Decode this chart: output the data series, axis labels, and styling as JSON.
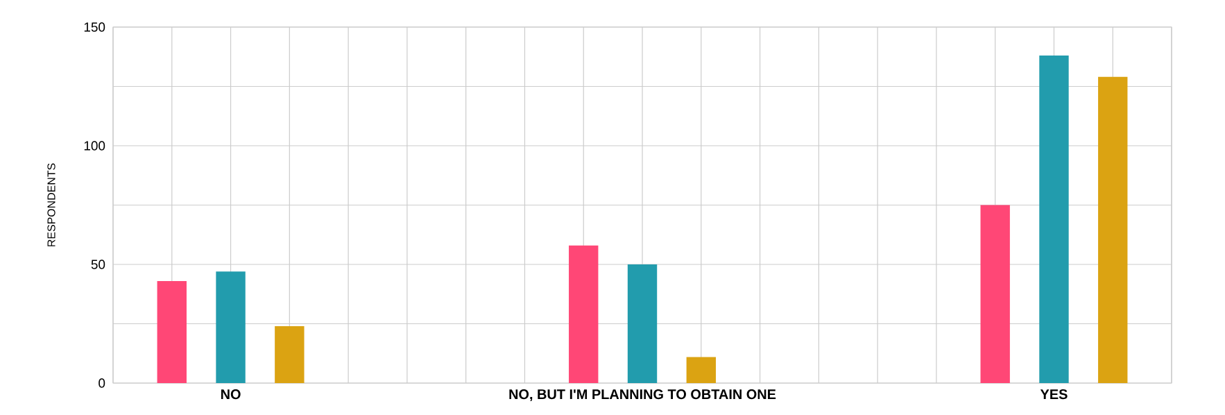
{
  "chart_data": {
    "type": "bar",
    "ylabel": "RESPONDENTS",
    "categories": [
      "NO",
      "NO, BUT I'M PLANNING TO OBTAIN ONE",
      "YES"
    ],
    "series": [
      {
        "color": "#ff4776",
        "values": [
          43,
          58,
          75
        ]
      },
      {
        "color": "#229cad",
        "values": [
          47,
          50,
          138
        ]
      },
      {
        "color": "#dba312",
        "values": [
          24,
          11,
          129
        ]
      }
    ],
    "ylim": [
      0,
      150
    ],
    "yticks": [
      0,
      {
        "value": 25,
        "label": null
      },
      50,
      {
        "value": 75,
        "label": null
      },
      100,
      {
        "value": 125,
        "label": null
      },
      150
    ],
    "grid": true
  }
}
